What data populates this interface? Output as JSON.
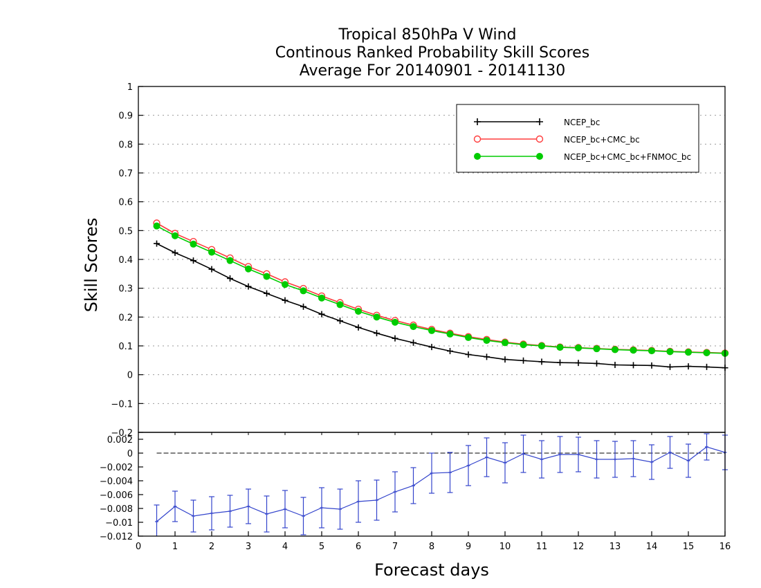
{
  "chart_data": [
    {
      "type": "line",
      "title": "Tropical 850hPa V Wind",
      "subtitle": "Continous Ranked Probability Skill Scores",
      "period": "Average For 20140901 - 20141130",
      "xlabel": "",
      "ylabel": "Skill Scores",
      "xlim": [
        0,
        16
      ],
      "ylim": [
        -0.2,
        1
      ],
      "x_ticks": [
        "0",
        "1",
        "2",
        "3",
        "4",
        "5",
        "6",
        "7",
        "8",
        "9",
        "10",
        "11",
        "12",
        "13",
        "14",
        "15",
        "16"
      ],
      "y_ticks": [
        "1",
        "0.9",
        "0.8",
        "0.7",
        "0.6",
        "0.5",
        "0.4",
        "0.3",
        "0.2",
        "0.1",
        "0",
        "−0.1",
        "−0.2"
      ],
      "grid": true,
      "legend_position": "top-right",
      "x": [
        0.5,
        1,
        1.5,
        2,
        2.5,
        3,
        3.5,
        4,
        4.5,
        5,
        5.5,
        6,
        6.5,
        7,
        7.5,
        8,
        8.5,
        9,
        9.5,
        10,
        10.5,
        11,
        11.5,
        12,
        12.5,
        13,
        13.5,
        14,
        14.5,
        15,
        15.5,
        16
      ],
      "series": [
        {
          "name": "NCEP_bc",
          "color": "#000000",
          "marker": "plus",
          "values": [
            0.455,
            0.423,
            0.396,
            0.366,
            0.334,
            0.306,
            0.282,
            0.258,
            0.236,
            0.21,
            0.187,
            0.164,
            0.144,
            0.126,
            0.111,
            0.096,
            0.082,
            0.07,
            0.062,
            0.053,
            0.049,
            0.045,
            0.042,
            0.041,
            0.039,
            0.034,
            0.033,
            0.032,
            0.027,
            0.029,
            0.027,
            0.024
          ]
        },
        {
          "name": "NCEP_bc+CMC_bc",
          "color": "#ff3b3b",
          "marker": "open-circle",
          "values": [
            0.526,
            0.49,
            0.462,
            0.434,
            0.405,
            0.375,
            0.35,
            0.322,
            0.299,
            0.273,
            0.25,
            0.227,
            0.206,
            0.188,
            0.172,
            0.157,
            0.144,
            0.132,
            0.122,
            0.113,
            0.106,
            0.101,
            0.096,
            0.094,
            0.091,
            0.088,
            0.086,
            0.084,
            0.081,
            0.079,
            0.077,
            0.075
          ]
        },
        {
          "name": "NCEP_bc+CMC_bc+FNMOC_bc",
          "color": "#00cc00",
          "marker": "filled-circle",
          "values": [
            0.516,
            0.482,
            0.453,
            0.425,
            0.396,
            0.367,
            0.341,
            0.313,
            0.291,
            0.266,
            0.243,
            0.22,
            0.2,
            0.182,
            0.167,
            0.153,
            0.141,
            0.129,
            0.119,
            0.111,
            0.104,
            0.1,
            0.095,
            0.093,
            0.09,
            0.087,
            0.085,
            0.083,
            0.08,
            0.078,
            0.076,
            0.074
          ]
        }
      ]
    },
    {
      "type": "line",
      "xlabel": "Forecast days",
      "ylabel": "",
      "xlim": [
        0,
        16
      ],
      "ylim": [
        -0.012,
        0.003
      ],
      "x_ticks": [
        "0",
        "1",
        "2",
        "3",
        "4",
        "5",
        "6",
        "7",
        "8",
        "9",
        "10",
        "11",
        "12",
        "13",
        "14",
        "15",
        "16"
      ],
      "y_ticks": [
        "0.002",
        "0",
        "−0.002",
        "−0.004",
        "−0.006",
        "−0.008",
        "−0.01",
        "−0.012"
      ],
      "reference_line": 0,
      "x": [
        0.5,
        1,
        1.5,
        2,
        2.5,
        3,
        3.5,
        4,
        4.5,
        5,
        5.5,
        6,
        6.5,
        7,
        7.5,
        8,
        8.5,
        9,
        9.5,
        10,
        10.5,
        11,
        11.5,
        12,
        12.5,
        13,
        13.5,
        14,
        14.5,
        15,
        15.5,
        16
      ],
      "series": [
        {
          "name": "",
          "color": "#3344cc",
          "error_bars": true,
          "values": [
            -0.0099,
            -0.0077,
            -0.0091,
            -0.0087,
            -0.0084,
            -0.0077,
            -0.0088,
            -0.0081,
            -0.0091,
            -0.0079,
            -0.0081,
            -0.007,
            -0.0068,
            -0.0056,
            -0.0047,
            -0.0029,
            -0.0028,
            -0.0018,
            -0.0006,
            -0.0014,
            -0.0001,
            -0.0009,
            -0.0002,
            -0.0002,
            -0.0009,
            -0.0009,
            -0.0008,
            -0.0013,
            0.0001,
            -0.0011,
            0.0009,
            0.0001
          ],
          "errors": [
            0.0024,
            0.0022,
            0.0023,
            0.0024,
            0.0023,
            0.0025,
            0.0026,
            0.0027,
            0.0027,
            0.0029,
            0.0029,
            0.003,
            0.0029,
            0.0029,
            0.0026,
            0.0029,
            0.0029,
            0.0029,
            0.0028,
            0.0029,
            0.0027,
            0.0027,
            0.0026,
            0.0025,
            0.0027,
            0.0026,
            0.0026,
            0.0025,
            0.0023,
            0.0024,
            0.0019,
            0.0025
          ]
        }
      ]
    }
  ]
}
